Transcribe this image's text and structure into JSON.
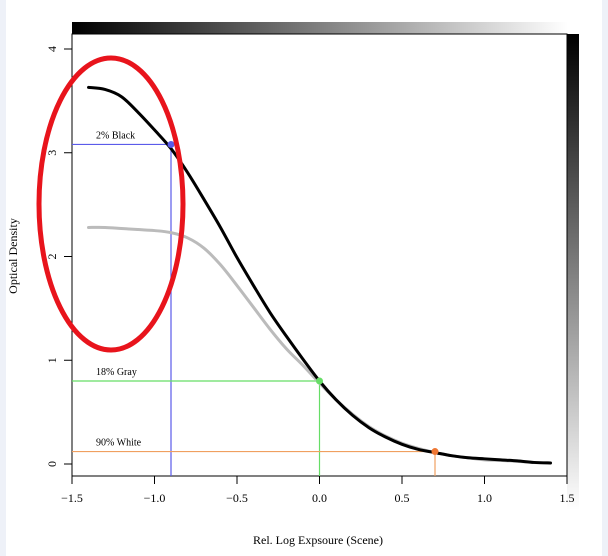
{
  "chart_data": {
    "type": "line",
    "xlabel": "Rel. Log Expsoure (Scene)",
    "ylabel": "Optical Density",
    "xlim": [
      -1.5,
      1.5
    ],
    "ylim": [
      -0.1,
      4.2
    ],
    "x_ticks": [
      -1.5,
      -1.0,
      -0.5,
      0.0,
      0.5,
      1.0,
      1.5
    ],
    "x_tick_labels": [
      "−1.5",
      "−1.0",
      "−0.5",
      "0.0",
      "0.5",
      "1.0",
      "1.5"
    ],
    "y_ticks": [
      0,
      1,
      2,
      3,
      4
    ],
    "y_tick_labels": [
      "0",
      "1",
      "2",
      "3",
      "4"
    ],
    "grid": false,
    "series": [
      {
        "color": "#000000",
        "x": [
          -1.4,
          -1.3,
          -1.2,
          -1.1,
          -1.0,
          -0.9,
          -0.8,
          -0.7,
          -0.6,
          -0.5,
          -0.4,
          -0.3,
          -0.2,
          -0.1,
          0.0,
          0.1,
          0.2,
          0.3,
          0.4,
          0.5,
          0.6,
          0.7,
          0.8,
          0.9,
          1.0,
          1.1,
          1.2,
          1.3,
          1.4
        ],
        "y": [
          3.63,
          3.61,
          3.54,
          3.39,
          3.22,
          3.04,
          2.81,
          2.55,
          2.28,
          1.99,
          1.72,
          1.46,
          1.23,
          1.01,
          0.8,
          0.62,
          0.47,
          0.35,
          0.26,
          0.19,
          0.14,
          0.11,
          0.08,
          0.06,
          0.05,
          0.04,
          0.03,
          0.015,
          0.01
        ]
      },
      {
        "color": "#bbbbbb",
        "x": [
          -1.4,
          -1.3,
          -1.2,
          -1.1,
          -1.0,
          -0.9,
          -0.8,
          -0.7,
          -0.6,
          -0.5,
          -0.4,
          -0.3,
          -0.2,
          -0.1,
          0.0,
          0.1,
          0.2,
          0.3,
          0.4,
          0.5,
          0.6,
          0.7,
          0.8,
          0.9,
          1.0,
          1.1,
          1.2,
          1.3,
          1.4
        ],
        "y": [
          2.28,
          2.28,
          2.27,
          2.26,
          2.25,
          2.23,
          2.18,
          2.08,
          1.92,
          1.72,
          1.51,
          1.3,
          1.11,
          0.95,
          0.78,
          0.62,
          0.48,
          0.36,
          0.27,
          0.2,
          0.15,
          0.11,
          0.08,
          0.06,
          0.04,
          0.035,
          0.025,
          0.015,
          0.01
        ]
      }
    ],
    "annotations": [
      {
        "label": "2% Black",
        "x": -0.9,
        "y": 3.08,
        "color": "#5b5bea",
        "point_color": "#5b5bea"
      },
      {
        "label": "18% Gray",
        "x": 0.0,
        "y": 0.8,
        "color": "#66dd66",
        "point_color": "#66dd66"
      },
      {
        "label": "90% White",
        "x": 0.7,
        "y": 0.12,
        "color": "#f0a060",
        "point_color": "#ee7733"
      }
    ],
    "highlight_ellipse_color": "#e8141c",
    "gradient_bar_colors": [
      "#000000",
      "#ffffff"
    ]
  }
}
